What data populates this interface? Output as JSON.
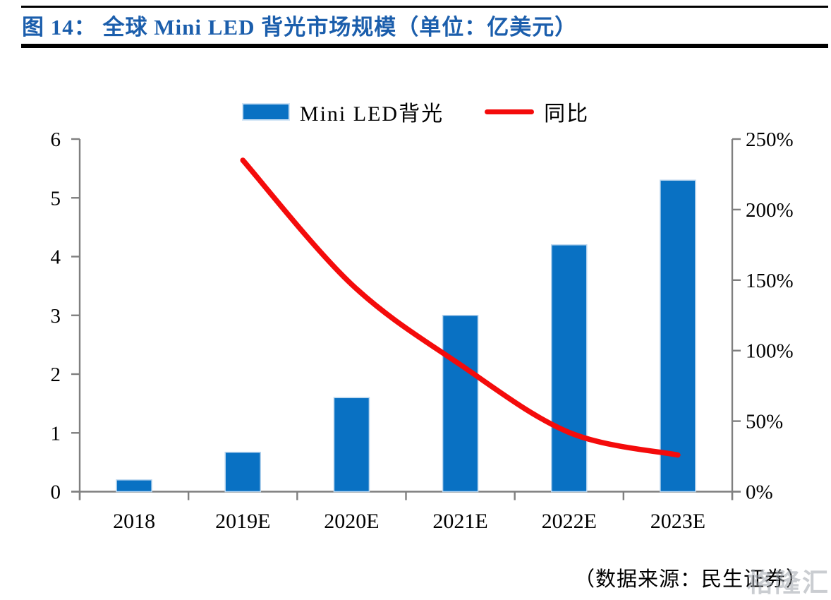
{
  "header": {
    "title": "图 14： 全球 Mini LED 背光市场规模（单位：亿美元）"
  },
  "legend": {
    "bar_label": "Mini LED背光",
    "line_label": "同比"
  },
  "footer": {
    "source": "（数据来源：民生证券）",
    "watermark": "格隆汇"
  },
  "colors": {
    "title": "#1b5eac",
    "bar": "#0971c3",
    "bar_border": "#b9d5ee",
    "line": "#f40b0b",
    "axis": "#7f7f7f",
    "text": "#000000"
  },
  "chart_data": {
    "type": "bar",
    "subtype": "combo-bar-line-dual-axis",
    "title": "全球 Mini LED 背光市场规模（单位：亿美元）",
    "categories": [
      "2018",
      "2019E",
      "2020E",
      "2021E",
      "2022E",
      "2023E"
    ],
    "series": [
      {
        "name": "Mini LED背光",
        "type": "bar",
        "axis": "left",
        "values": [
          0.2,
          0.67,
          1.6,
          3.0,
          4.2,
          5.3
        ]
      },
      {
        "name": "同比",
        "type": "line",
        "axis": "right",
        "unit": "%",
        "values": [
          null,
          235,
          147,
          90,
          42,
          26
        ]
      }
    ],
    "left_axis": {
      "min": 0,
      "max": 6,
      "tick_labels": [
        "0",
        "1",
        "2",
        "3",
        "4",
        "5",
        "6"
      ],
      "tick_values": [
        0,
        1,
        2,
        3,
        4,
        5,
        6
      ]
    },
    "right_axis": {
      "min": 0,
      "max": 250,
      "tick_labels": [
        "0%",
        "50%",
        "100%",
        "150%",
        "200%",
        "250%"
      ],
      "tick_values": [
        0,
        50,
        100,
        150,
        200,
        250
      ]
    },
    "grid": false,
    "legend_position": "top-center"
  }
}
